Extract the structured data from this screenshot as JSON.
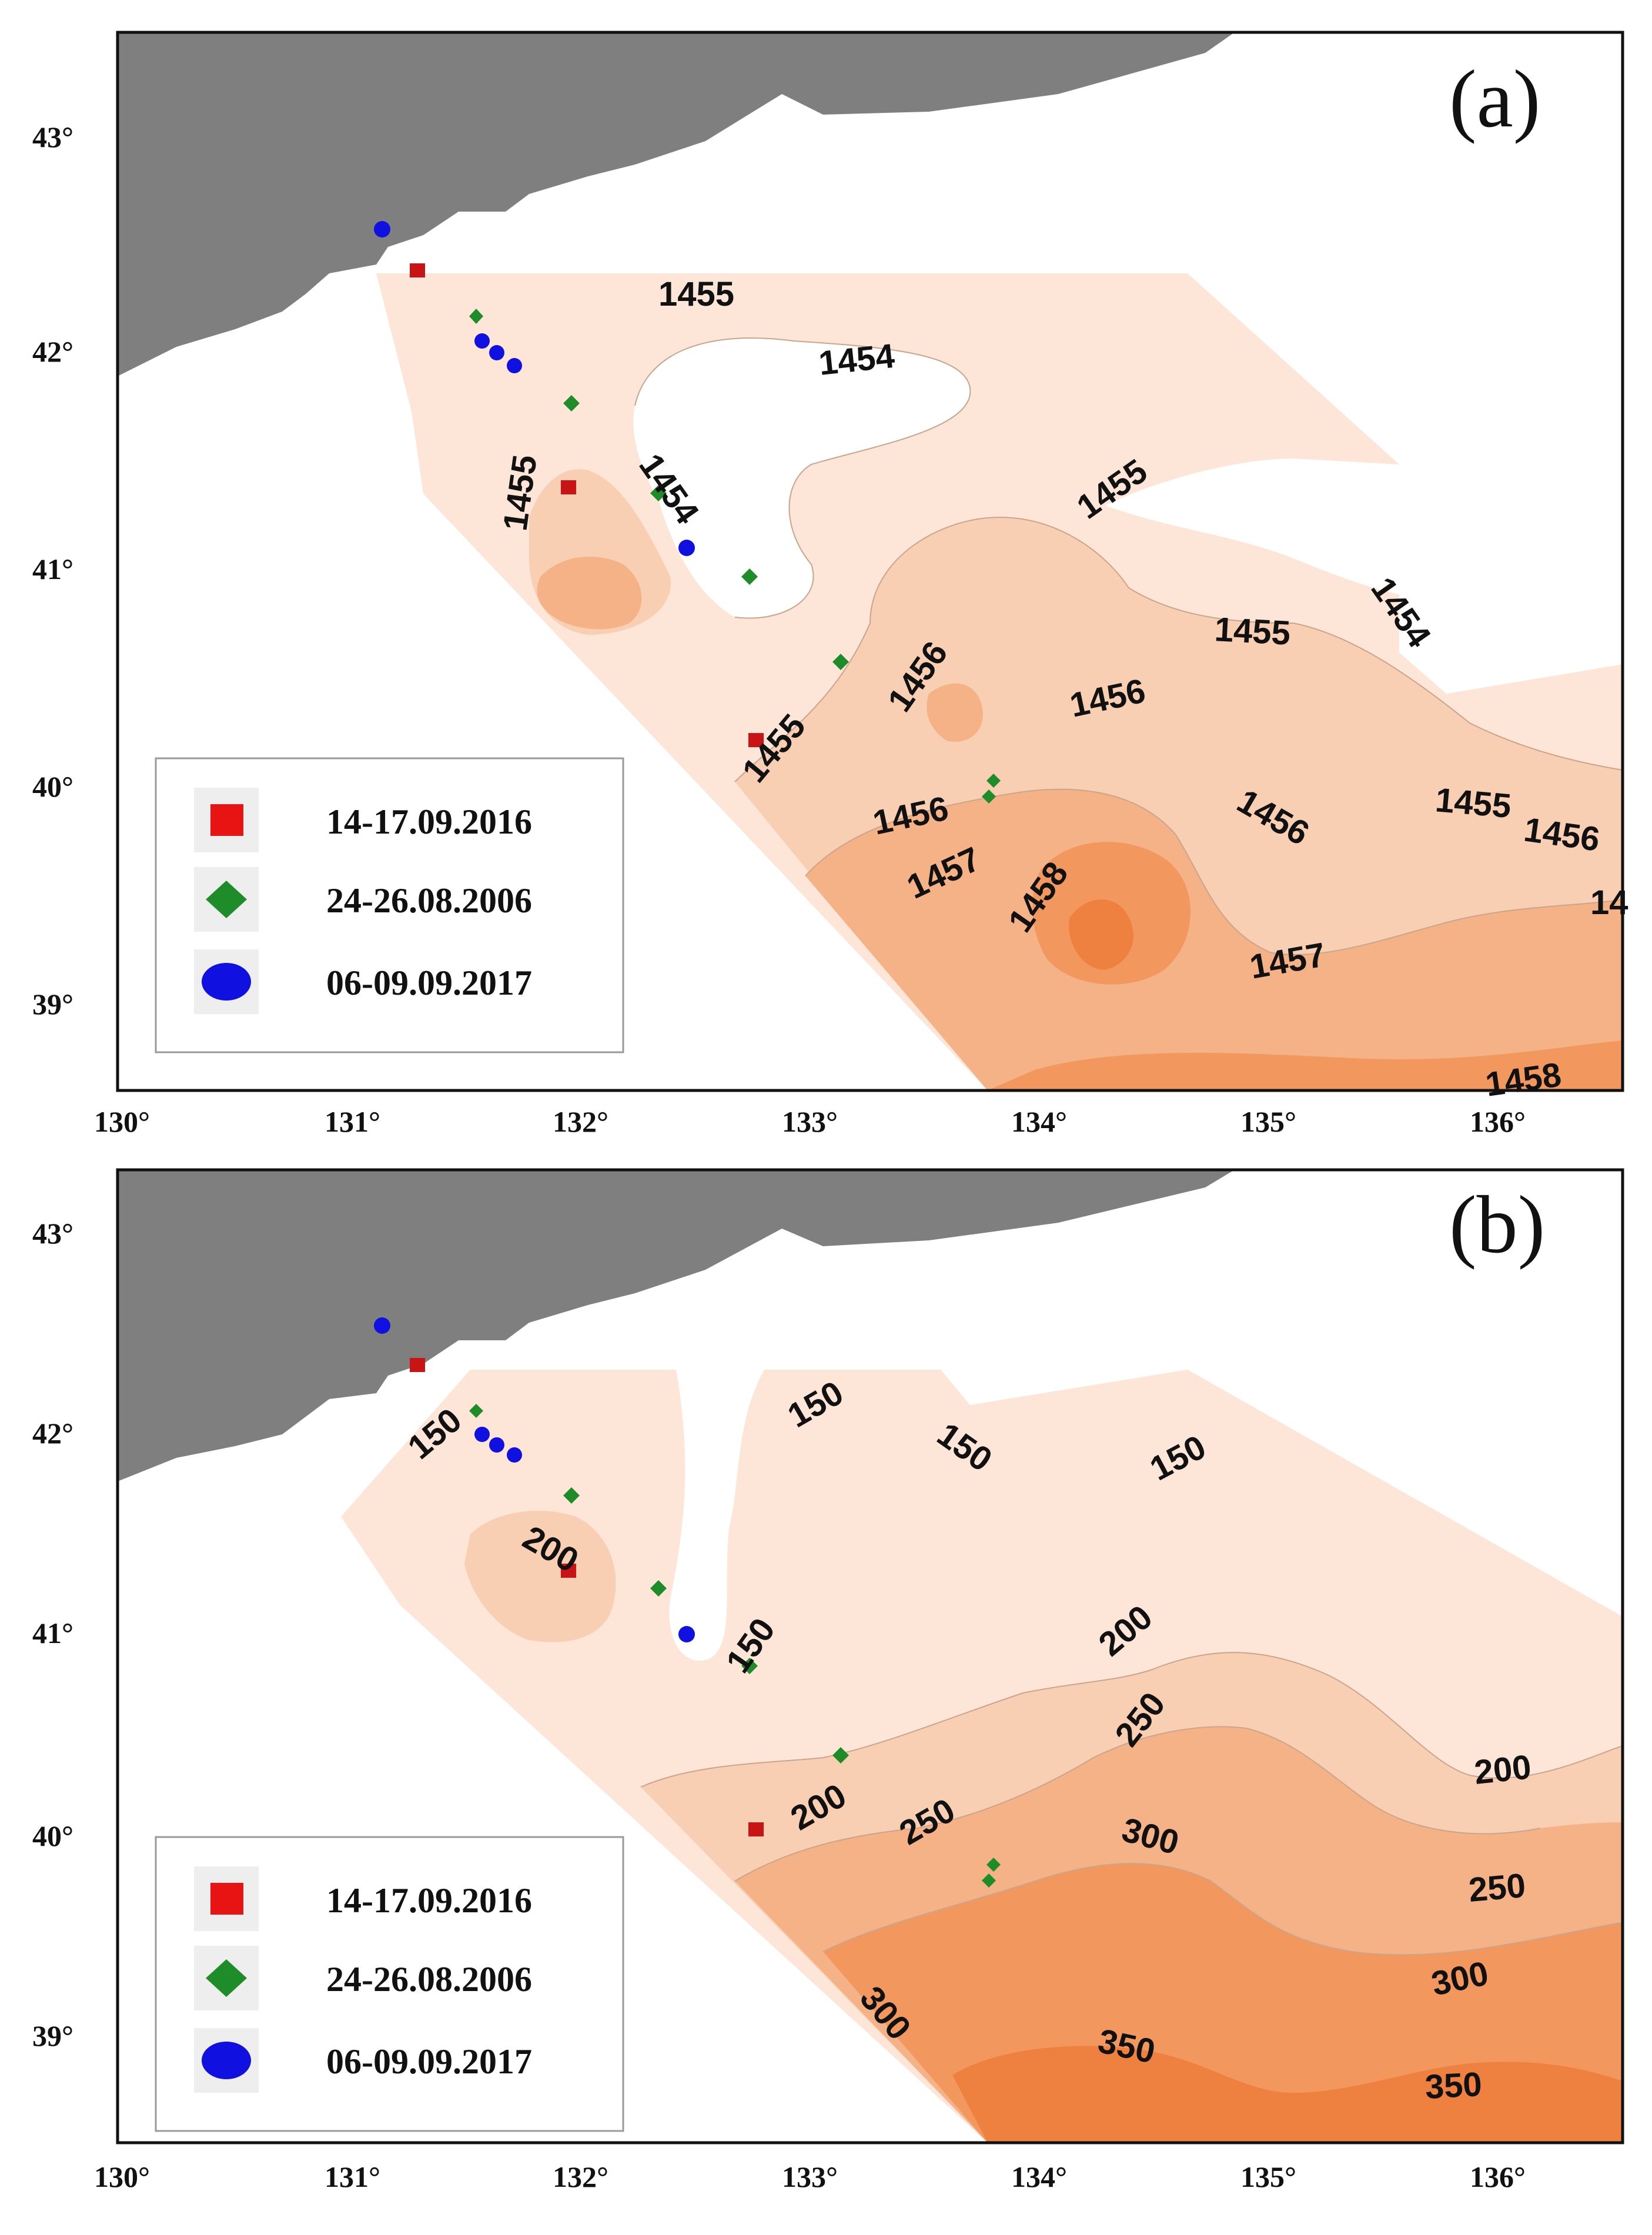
{
  "panels": [
    {
      "id": "a",
      "label": "(a)",
      "contour_labels": [
        "1455",
        "1454",
        "1455",
        "1454",
        "1455",
        "1454",
        "1455",
        "1456",
        "1455",
        "1456",
        "1456",
        "1457",
        "1458",
        "1456",
        "1455",
        "1456",
        "14",
        "1457",
        "1458"
      ],
      "legend": [
        {
          "marker": "square",
          "color": "#e81414",
          "label": "14-17.09.2016"
        },
        {
          "marker": "diamond",
          "color": "#1f8c2a",
          "label": "24-26.08.2006"
        },
        {
          "marker": "circle",
          "color": "#1010e0",
          "label": "06-09.09.2017"
        }
      ]
    },
    {
      "id": "b",
      "label": "(b)",
      "contour_labels": [
        "150",
        "150",
        "150",
        "150",
        "200",
        "150",
        "200",
        "200",
        "250",
        "250",
        "300",
        "200",
        "250",
        "300",
        "300",
        "350",
        "350"
      ],
      "legend": [
        {
          "marker": "square",
          "color": "#e81414",
          "label": "14-17.09.2016"
        },
        {
          "marker": "diamond",
          "color": "#1f8c2a",
          "label": "24-26.08.2006"
        },
        {
          "marker": "circle",
          "color": "#1010e0",
          "label": "06-09.09.2017"
        }
      ]
    }
  ],
  "axes": {
    "x_ticks": [
      "130°",
      "131°",
      "132°",
      "133°",
      "134°",
      "135°",
      "136°"
    ],
    "y_ticks": [
      "43°",
      "42°",
      "41°",
      "40°",
      "39°"
    ]
  },
  "colors": {
    "land": "#7f7f7f",
    "level1": "#fde6d8",
    "level2": "#f9cfb3",
    "level3": "#f5b287",
    "level4": "#f2985e",
    "level5": "#ee8040"
  }
}
